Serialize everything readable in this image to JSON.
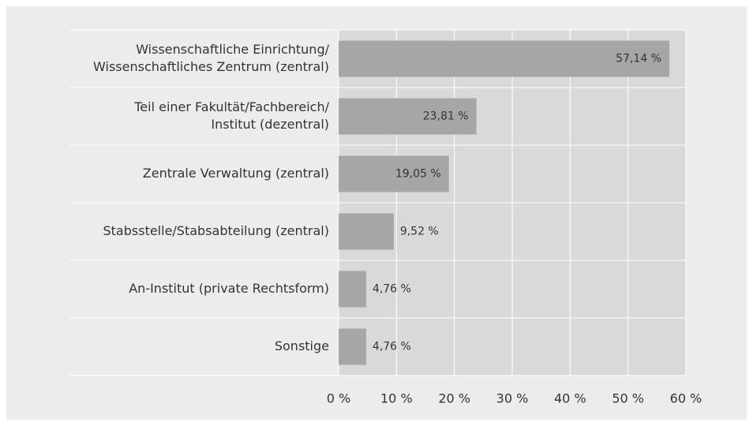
{
  "chart_data": {
    "type": "barh",
    "categories": [
      [
        "Wissenschaftliche Einrichtung/",
        "Wissenschaftliches Zentrum (zentral)"
      ],
      [
        "Teil einer Fakultät/Fachbereich/",
        "Institut (dezentral)"
      ],
      [
        "Zentrale Verwaltung (zentral)"
      ],
      [
        "Stabsstelle/Stabsabteilung (zentral)"
      ],
      [
        "An-Institut (private Rechtsform)"
      ],
      [
        "Sonstige"
      ]
    ],
    "values": [
      57.14,
      23.81,
      19.05,
      9.52,
      4.76,
      4.76
    ],
    "value_labels": [
      "57,14 %",
      "23,81 %",
      "19,05 %",
      "9,52 %",
      "4,76 %",
      "4,76 %"
    ],
    "color": "#a6a6a6",
    "xlim": [
      0,
      60
    ],
    "xticks": [
      {
        "value": 0,
        "label": "0 %"
      },
      {
        "value": 10,
        "label": "10 %"
      },
      {
        "value": 20,
        "label": "20 %"
      },
      {
        "value": 30,
        "label": "30 %"
      },
      {
        "value": 40,
        "label": "40 %"
      },
      {
        "value": 50,
        "label": "50 %"
      },
      {
        "value": 60,
        "label": "60 %"
      }
    ],
    "grid": true
  }
}
